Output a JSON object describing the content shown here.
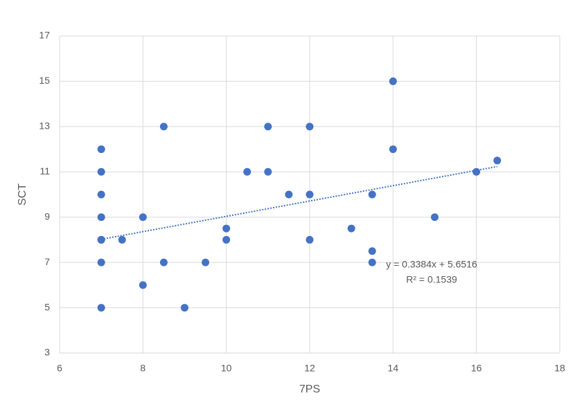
{
  "chart_data": {
    "type": "scatter",
    "x_label": "7PS",
    "y_label": "SCT",
    "color": "#4472c4",
    "grid": true,
    "x": [
      7,
      7,
      7,
      7,
      7,
      7,
      7,
      7,
      7.5,
      8,
      8,
      8.5,
      8.5,
      9,
      9.5,
      10,
      10,
      10.5,
      11,
      11,
      11.5,
      12,
      12,
      12,
      13,
      13.5,
      13.5,
      13.5,
      14,
      14,
      15,
      16,
      16.5
    ],
    "values": [
      12,
      11,
      10,
      9,
      8,
      8,
      7,
      5,
      8,
      9,
      6,
      13,
      7,
      5,
      7,
      8.5,
      8,
      11,
      13,
      11,
      10,
      13,
      10,
      8,
      8.5,
      10,
      7.5,
      7,
      15,
      12,
      9,
      11,
      11.5
    ],
    "xlim": [
      6,
      18
    ],
    "xticks": [
      6,
      8,
      10,
      12,
      14,
      16,
      18
    ],
    "ylim": [
      3,
      17
    ],
    "yticks": [
      3,
      5,
      7,
      9,
      11,
      13,
      15,
      17
    ],
    "trendline": {
      "equation": "y = 0.3384x + 5.6516",
      "r_squared": "R² = 0.1539",
      "x": [
        7,
        16.5
      ],
      "values": [
        8.0204,
        11.2352
      ]
    }
  }
}
